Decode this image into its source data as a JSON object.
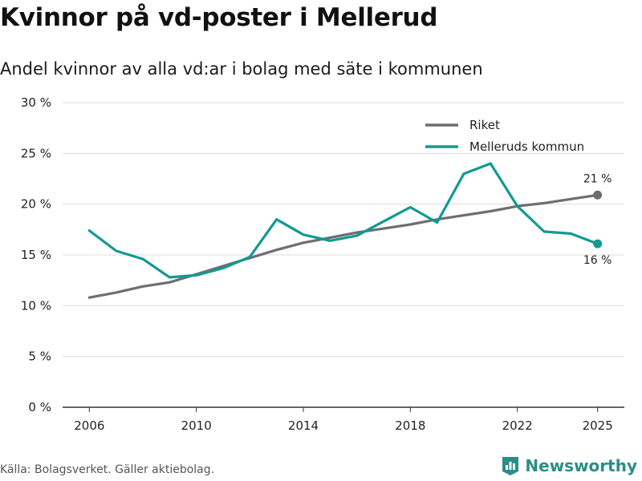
{
  "header": {
    "title": "Kvinnor på vd-poster i Mellerud",
    "subtitle": "Andel kvinnor av alla vd:ar i bolag med säte i kommunen"
  },
  "footer": {
    "source": "Källa: Bolagsverket. Gäller aktiebolag.",
    "brand": "Newsworthy"
  },
  "colors": {
    "riket": "#6e6d73",
    "mellerud": "#119a91",
    "grid": "#dcdcdc",
    "axis": "#333333"
  },
  "chart_data": {
    "type": "line",
    "title": "Kvinnor på vd-poster i Mellerud",
    "subtitle": "Andel kvinnor av alla vd:ar i bolag med säte i kommunen",
    "xlabel": "",
    "ylabel": "",
    "ylim": [
      0,
      30
    ],
    "y_ticks": [
      0,
      5,
      10,
      15,
      20,
      25,
      30
    ],
    "y_tick_labels": [
      "0 %",
      "5 %",
      "10 %",
      "15 %",
      "20 %",
      "25 %",
      "30 %"
    ],
    "x_ticks": [
      2006,
      2010,
      2014,
      2018,
      2022,
      2025
    ],
    "x_tick_labels": [
      "2006",
      "2010",
      "2014",
      "2018",
      "2022",
      "2025"
    ],
    "grid": true,
    "legend_position": "top-right",
    "x": [
      2006,
      2007,
      2008,
      2009,
      2010,
      2011,
      2012,
      2013,
      2014,
      2015,
      2016,
      2017,
      2018,
      2019,
      2020,
      2021,
      2022,
      2023,
      2024,
      2025
    ],
    "series": [
      {
        "name": "Riket",
        "values": [
          10.8,
          11.3,
          11.9,
          12.3,
          13.1,
          13.9,
          14.7,
          15.5,
          16.2,
          16.7,
          17.2,
          17.6,
          18.0,
          18.5,
          18.9,
          19.3,
          19.8,
          20.1,
          20.5,
          20.9
        ],
        "end_label": "21 %"
      },
      {
        "name": "Melleruds kommun",
        "values": [
          17.4,
          15.4,
          14.6,
          12.8,
          13.0,
          13.7,
          14.8,
          18.5,
          17.0,
          16.4,
          16.9,
          18.3,
          19.7,
          18.2,
          23.0,
          24.0,
          19.8,
          17.3,
          17.1,
          16.1
        ],
        "end_label": "16 %"
      }
    ]
  }
}
